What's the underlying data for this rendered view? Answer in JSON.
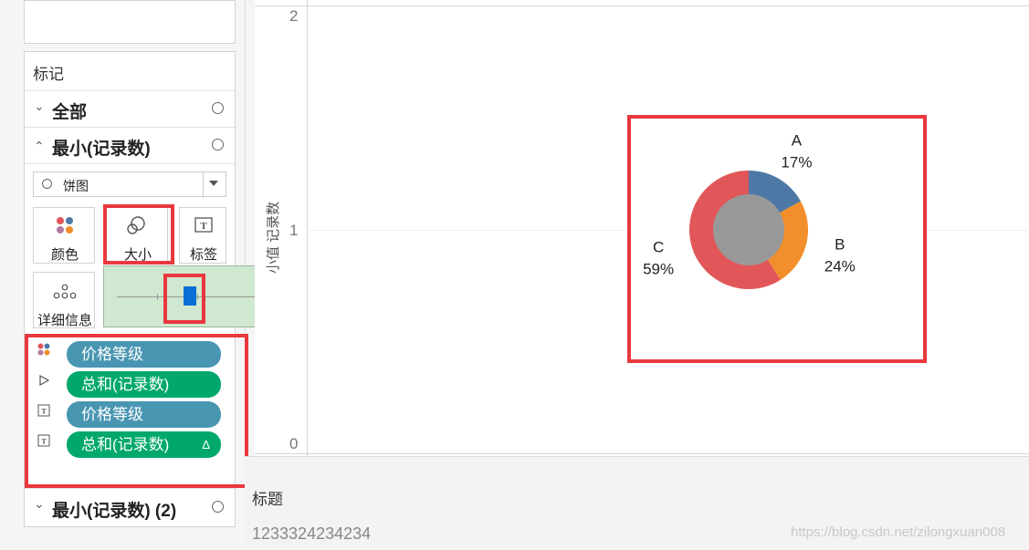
{
  "marks": {
    "title": "标记",
    "all_label": "全部",
    "min_label": "最小(记录数)",
    "mark_type": "饼图",
    "cards": {
      "color": "颜色",
      "size": "大小",
      "label": "标签",
      "detail": "详细信息"
    },
    "size_slider_value": 0.45,
    "shelf": [
      {
        "icon": "color-dots-icon",
        "text": "价格等级",
        "color": "#4996b2"
      },
      {
        "icon": "angle-icon",
        "text": "总和(记录数)",
        "color": "#00a86b"
      },
      {
        "icon": "text-icon",
        "text": "价格等级",
        "color": "#4996b2"
      },
      {
        "icon": "text-icon",
        "text": "总和(记录数)",
        "color": "#00a86b",
        "suffix": "Δ"
      }
    ],
    "min2_label": "最小(记录数) (2)"
  },
  "axis": {
    "label": "小值 记录数",
    "ticks": [
      "2",
      "1",
      "0"
    ]
  },
  "chart_data": {
    "type": "pie",
    "categories": [
      "A",
      "B",
      "C"
    ],
    "values": [
      17,
      24,
      59
    ],
    "labels": [
      "17%",
      "24%",
      "59%"
    ],
    "colors": [
      "#4e79a7",
      "#f28e2b",
      "#e15759"
    ],
    "center_color": "#999999"
  },
  "caption": {
    "title": "标题",
    "text": "1233324234234"
  },
  "watermark": "https://blog.csdn.net/zilongxuan008",
  "accent": "#e9383f"
}
